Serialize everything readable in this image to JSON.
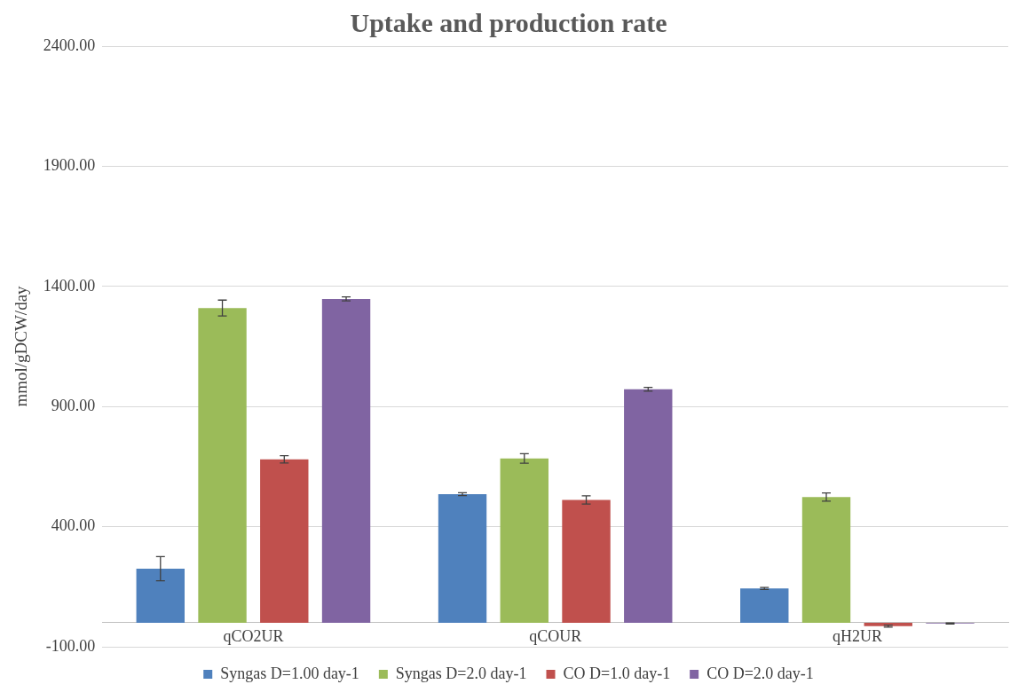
{
  "chart_data": {
    "type": "bar",
    "title": "Uptake and production rate",
    "ylabel": "mmol/gDCW/day",
    "categories": [
      "qCO2UR",
      "qCOUR",
      "qH2UR"
    ],
    "series": [
      {
        "name": "Syngas D=1.00 day-1",
        "color": "#4f81bd",
        "values": [
          225,
          535,
          143
        ],
        "errors": [
          50,
          6,
          4
        ]
      },
      {
        "name": "Syngas D=2.0 day-1",
        "color": "#9bbb59",
        "values": [
          1310,
          684,
          523
        ],
        "errors": [
          33,
          20,
          17
        ]
      },
      {
        "name": "CO D=1.0 day-1",
        "color": "#c0504d",
        "values": [
          680,
          511,
          -14
        ],
        "errors": [
          15,
          17,
          4
        ]
      },
      {
        "name": "CO D=2.0 day-1",
        "color": "#8064a2",
        "values": [
          1348,
          972,
          -3
        ],
        "errors": [
          8,
          8,
          2
        ]
      }
    ],
    "ylim": [
      -100,
      2400
    ],
    "yticks": [
      {
        "value": -100,
        "label": "-100.00"
      },
      {
        "value": 400,
        "label": "400.00"
      },
      {
        "value": 900,
        "label": "900.00"
      },
      {
        "value": 1400,
        "label": "1400.00"
      },
      {
        "value": 1900,
        "label": "1900.00"
      },
      {
        "value": 2400,
        "label": "2400.00"
      }
    ],
    "grid": "y",
    "legend": "bottom"
  }
}
